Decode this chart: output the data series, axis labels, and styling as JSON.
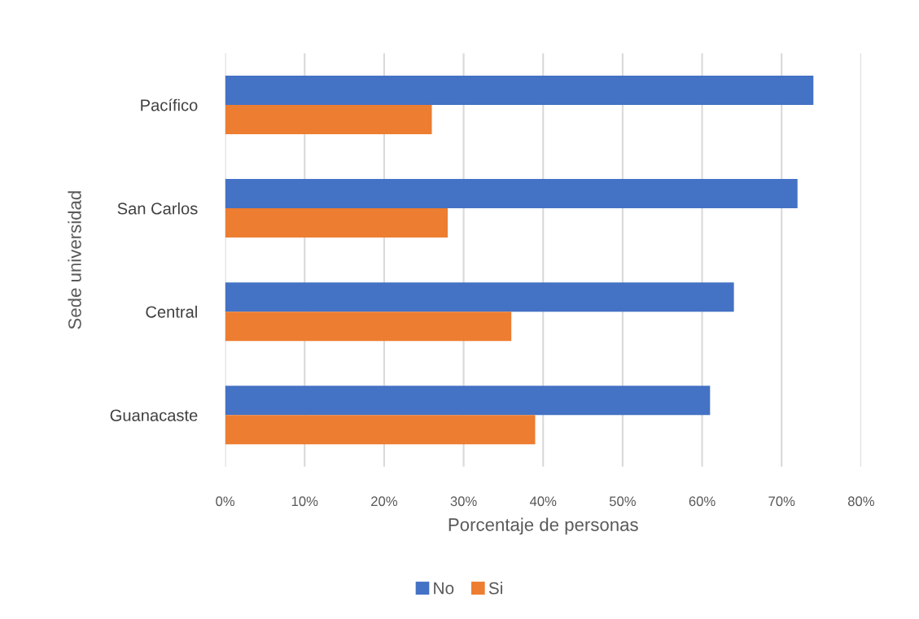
{
  "chart_data": {
    "type": "bar",
    "orientation": "horizontal",
    "categories": [
      "Pacífico",
      "San Carlos",
      "Central",
      "Guanacaste"
    ],
    "series": [
      {
        "name": "No",
        "color": "#4472c4",
        "values": [
          74,
          72,
          64,
          61
        ]
      },
      {
        "name": "Si",
        "color": "#ed7d31",
        "values": [
          26,
          28,
          36,
          39
        ]
      }
    ],
    "xlabel": "Porcentaje de personas",
    "ylabel": "Sede universidad",
    "xlim": [
      0,
      80
    ],
    "xticks": [
      {
        "value": 0,
        "label": "0%"
      },
      {
        "value": 10,
        "label": "10%"
      },
      {
        "value": 20,
        "label": "20%"
      },
      {
        "value": 30,
        "label": "30%"
      },
      {
        "value": 40,
        "label": "40%"
      },
      {
        "value": 50,
        "label": "50%"
      },
      {
        "value": 60,
        "label": "60%"
      },
      {
        "value": 70,
        "label": "70%"
      },
      {
        "value": 80,
        "label": "80%"
      }
    ],
    "grid": "x",
    "legend": "bottom"
  }
}
